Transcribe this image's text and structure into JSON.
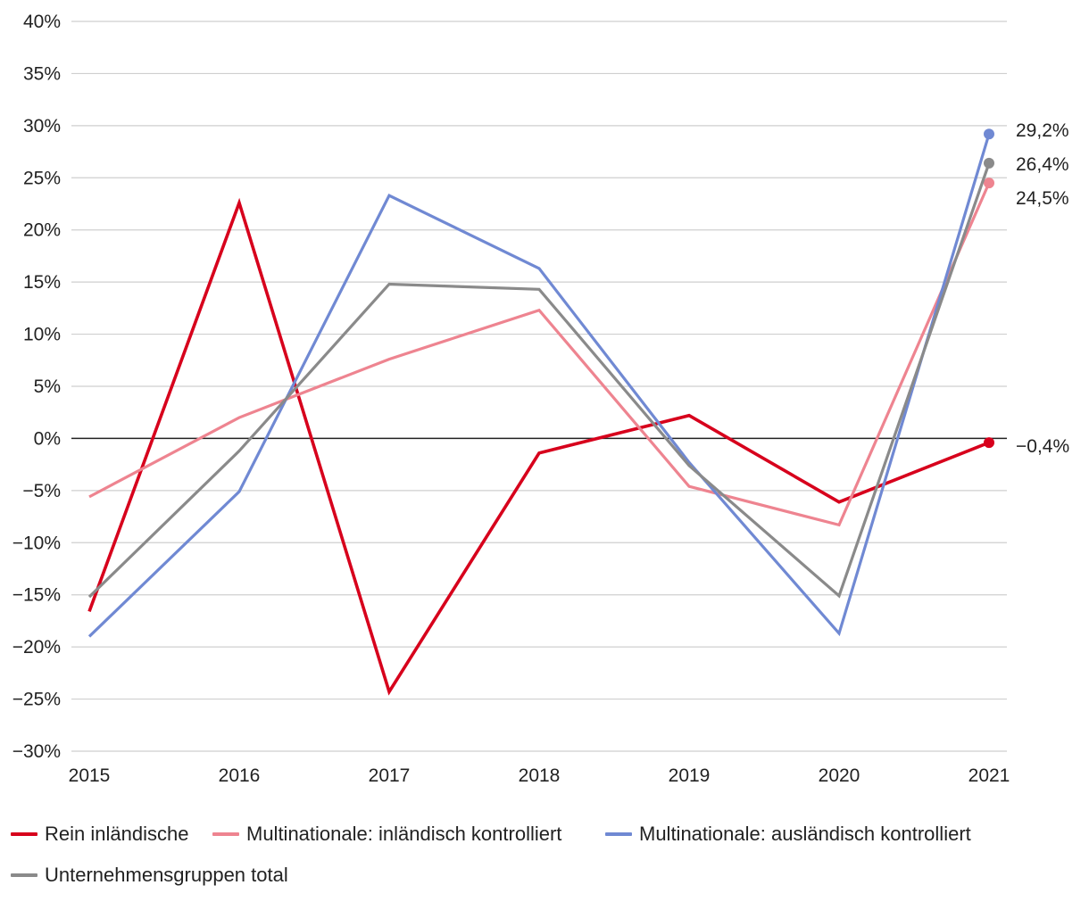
{
  "chart_data": {
    "type": "line",
    "title": "",
    "xlabel": "",
    "ylabel": "",
    "categories": [
      "2015",
      "2016",
      "2017",
      "2018",
      "2019",
      "2020",
      "2021"
    ],
    "ylim": [
      -30,
      40
    ],
    "ystep": 5,
    "ytick_labels": [
      "40%",
      "35%",
      "30%",
      "25%",
      "20%",
      "15%",
      "10%",
      "5%",
      "0%",
      "−5%",
      "−10%",
      "−15%",
      "−20%",
      "−25%",
      "−30%"
    ],
    "grid": true,
    "legend_position": "bottom",
    "series": [
      {
        "name": "Rein inländische",
        "color": "#d7001c",
        "values": [
          -16.6,
          22.6,
          -24.3,
          -1.4,
          2.2,
          -6.1,
          -0.4
        ],
        "end_label": "−0,4%"
      },
      {
        "name": "Multinationale: inländisch kontrolliert",
        "color": "#ee8490",
        "values": [
          -5.6,
          2.0,
          7.6,
          12.3,
          -4.6,
          -8.3,
          24.5
        ],
        "end_label": "24,5%"
      },
      {
        "name": "Multinationale: ausländisch kontrolliert",
        "color": "#7089d3",
        "values": [
          -19.0,
          -5.1,
          23.3,
          16.3,
          -2.3,
          -18.7,
          29.2
        ],
        "end_label": "29,2%"
      },
      {
        "name": "Unternehmensgruppen total",
        "color": "#8a8a8a",
        "values": [
          -15.2,
          -1.2,
          14.8,
          14.3,
          -2.6,
          -15.1,
          26.4
        ],
        "end_label": "26,4%"
      }
    ]
  }
}
